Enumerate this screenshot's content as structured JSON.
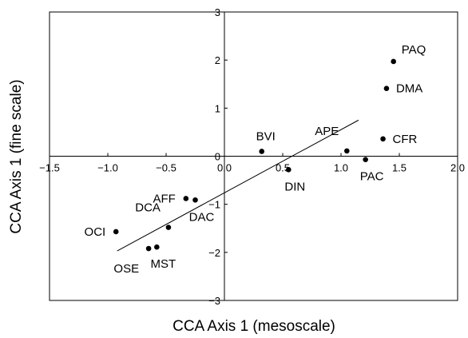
{
  "chart_data": {
    "type": "scatter",
    "xlabel": "CCA Axis 1 (mesoscale)",
    "ylabel": "CCA Axis 1 (fine scale)",
    "xlim": [
      -1.5,
      2.0
    ],
    "ylim": [
      -3,
      3
    ],
    "x_ticks": [
      -1.5,
      -1.0,
      -0.5,
      0.0,
      0.5,
      1.0,
      1.5,
      2.0
    ],
    "x_tick_labels": [
      "−1.5",
      "−1.0",
      "−0.5",
      "0.0",
      "0.5",
      "1.0",
      "1.5",
      "2.0"
    ],
    "y_ticks": [
      -3,
      -2,
      -1,
      0,
      1,
      2,
      3
    ],
    "y_tick_labels": [
      "−3",
      "−2",
      "−1",
      "0",
      "1",
      "2",
      "3"
    ],
    "grid": false,
    "reference_lines": {
      "x": 0,
      "y": 0
    },
    "points": [
      {
        "label": "PAQ",
        "x": 1.45,
        "y": 1.97,
        "label_pos": "upper-right"
      },
      {
        "label": "DMA",
        "x": 1.39,
        "y": 1.41,
        "label_pos": "right"
      },
      {
        "label": "CFR",
        "x": 1.36,
        "y": 0.36,
        "label_pos": "right"
      },
      {
        "label": "PAC",
        "x": 1.21,
        "y": -0.07,
        "label_pos": "below"
      },
      {
        "label": "APE",
        "x": 1.05,
        "y": 0.11,
        "label_pos": "upper-left"
      },
      {
        "label": "DIN",
        "x": 0.55,
        "y": -0.28,
        "label_pos": "below"
      },
      {
        "label": "BVI",
        "x": 0.32,
        "y": 0.1,
        "label_pos": "above"
      },
      {
        "label": "AFF",
        "x": -0.33,
        "y": -0.88,
        "label_pos": "left"
      },
      {
        "label": "DAC",
        "x": -0.25,
        "y": -0.91,
        "label_pos": "below"
      },
      {
        "label": "DCA",
        "x": -0.48,
        "y": -1.48,
        "label_pos": "upper-left"
      },
      {
        "label": "MST",
        "x": -0.58,
        "y": -1.89,
        "label_pos": "below"
      },
      {
        "label": "OSE",
        "x": -0.65,
        "y": -1.92,
        "label_pos": "lower-left"
      },
      {
        "label": "OCI",
        "x": -0.93,
        "y": -1.57,
        "label_pos": "left"
      }
    ],
    "fit_line": {
      "x": [
        -0.92,
        1.15
      ],
      "y": [
        -1.97,
        0.75
      ]
    }
  }
}
